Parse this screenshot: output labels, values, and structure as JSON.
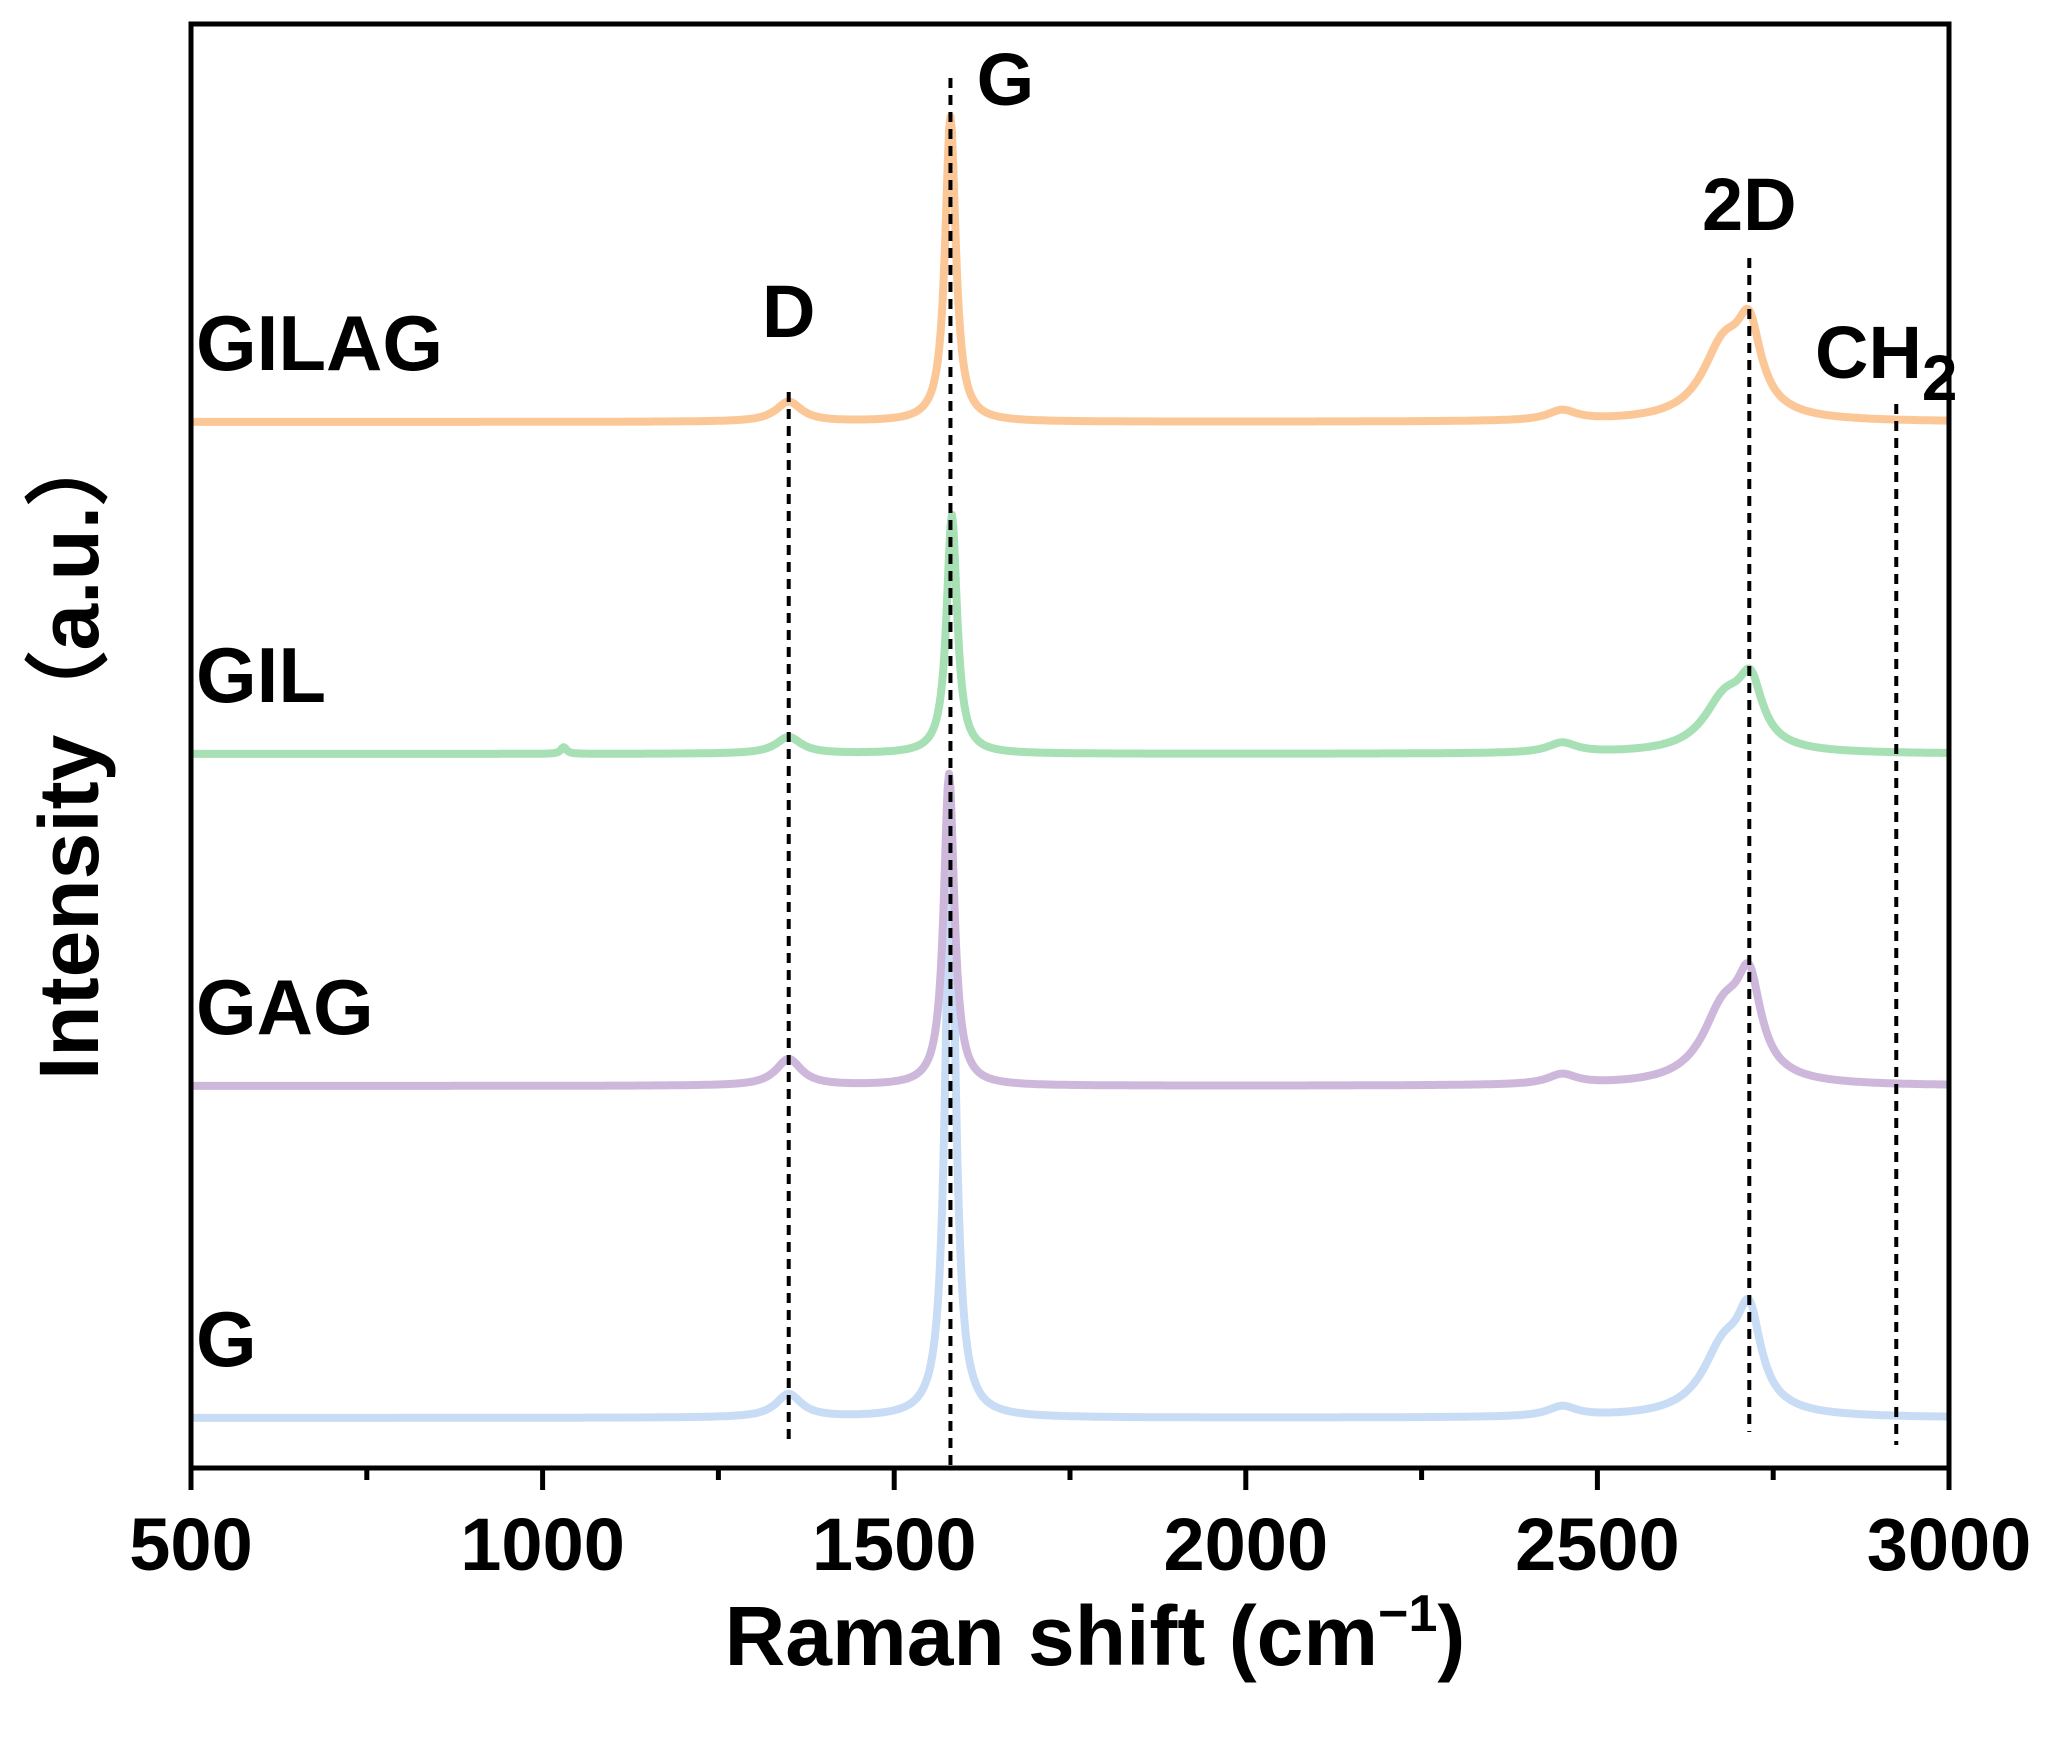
{
  "chart_data": {
    "type": "line",
    "title": "",
    "xlabel": "Raman shift (cm",
    "xlabel_sup": "−1",
    "xlabel_close": ")",
    "ylabel": "Intensity（a.u.）",
    "xlim": [
      500,
      3000
    ],
    "x_ticks": [
      500,
      1000,
      1500,
      2000,
      2500,
      3000
    ],
    "x_minor_ticks": [
      750,
      1250,
      1750,
      2250,
      2750
    ],
    "y_ticks": [],
    "grid": false,
    "legend": "none",
    "series": [
      {
        "name": "G",
        "color": "#c9dcf5",
        "baseline": 0.0,
        "peaks": [
          {
            "center": 1350,
            "width": 22,
            "height": 0.07
          },
          {
            "center": 1580,
            "width": 9,
            "height": 1.72
          },
          {
            "center": 2450,
            "width": 25,
            "height": 0.03
          },
          {
            "center": 2680,
            "width": 38,
            "height": 0.2
          },
          {
            "center": 2716,
            "width": 20,
            "height": 0.25
          }
        ]
      },
      {
        "name": "GAG",
        "color": "#cdb8dc",
        "baseline": 1.0,
        "peaks": [
          {
            "center": 1350,
            "width": 22,
            "height": 0.08
          },
          {
            "center": 1578,
            "width": 9,
            "height": 0.94
          },
          {
            "center": 2450,
            "width": 25,
            "height": 0.03
          },
          {
            "center": 2680,
            "width": 38,
            "height": 0.22
          },
          {
            "center": 2716,
            "width": 20,
            "height": 0.25
          }
        ]
      },
      {
        "name": "GIL",
        "color": "#a6e0b4",
        "baseline": 2.0,
        "peaks": [
          {
            "center": 1030,
            "width": 5,
            "height": 0.02
          },
          {
            "center": 1350,
            "width": 22,
            "height": 0.05
          },
          {
            "center": 1582,
            "width": 9,
            "height": 0.72
          },
          {
            "center": 2450,
            "width": 25,
            "height": 0.03
          },
          {
            "center": 2682,
            "width": 38,
            "height": 0.16
          },
          {
            "center": 2718,
            "width": 20,
            "height": 0.17
          }
        ]
      },
      {
        "name": "GILAG",
        "color": "#fcc797",
        "baseline": 3.0,
        "peaks": [
          {
            "center": 1350,
            "width": 22,
            "height": 0.06
          },
          {
            "center": 1580,
            "width": 9,
            "height": 0.92
          },
          {
            "center": 2450,
            "width": 25,
            "height": 0.03
          },
          {
            "center": 2680,
            "width": 38,
            "height": 0.22
          },
          {
            "center": 2716,
            "width": 20,
            "height": 0.22
          }
        ]
      }
    ],
    "peak_annotations": [
      {
        "label": "D",
        "x": 1350
      },
      {
        "label": "G",
        "x": 1580
      },
      {
        "label": "2D",
        "x": 2716
      },
      {
        "label": "CH",
        "sub": "2",
        "x": 2925
      }
    ]
  }
}
